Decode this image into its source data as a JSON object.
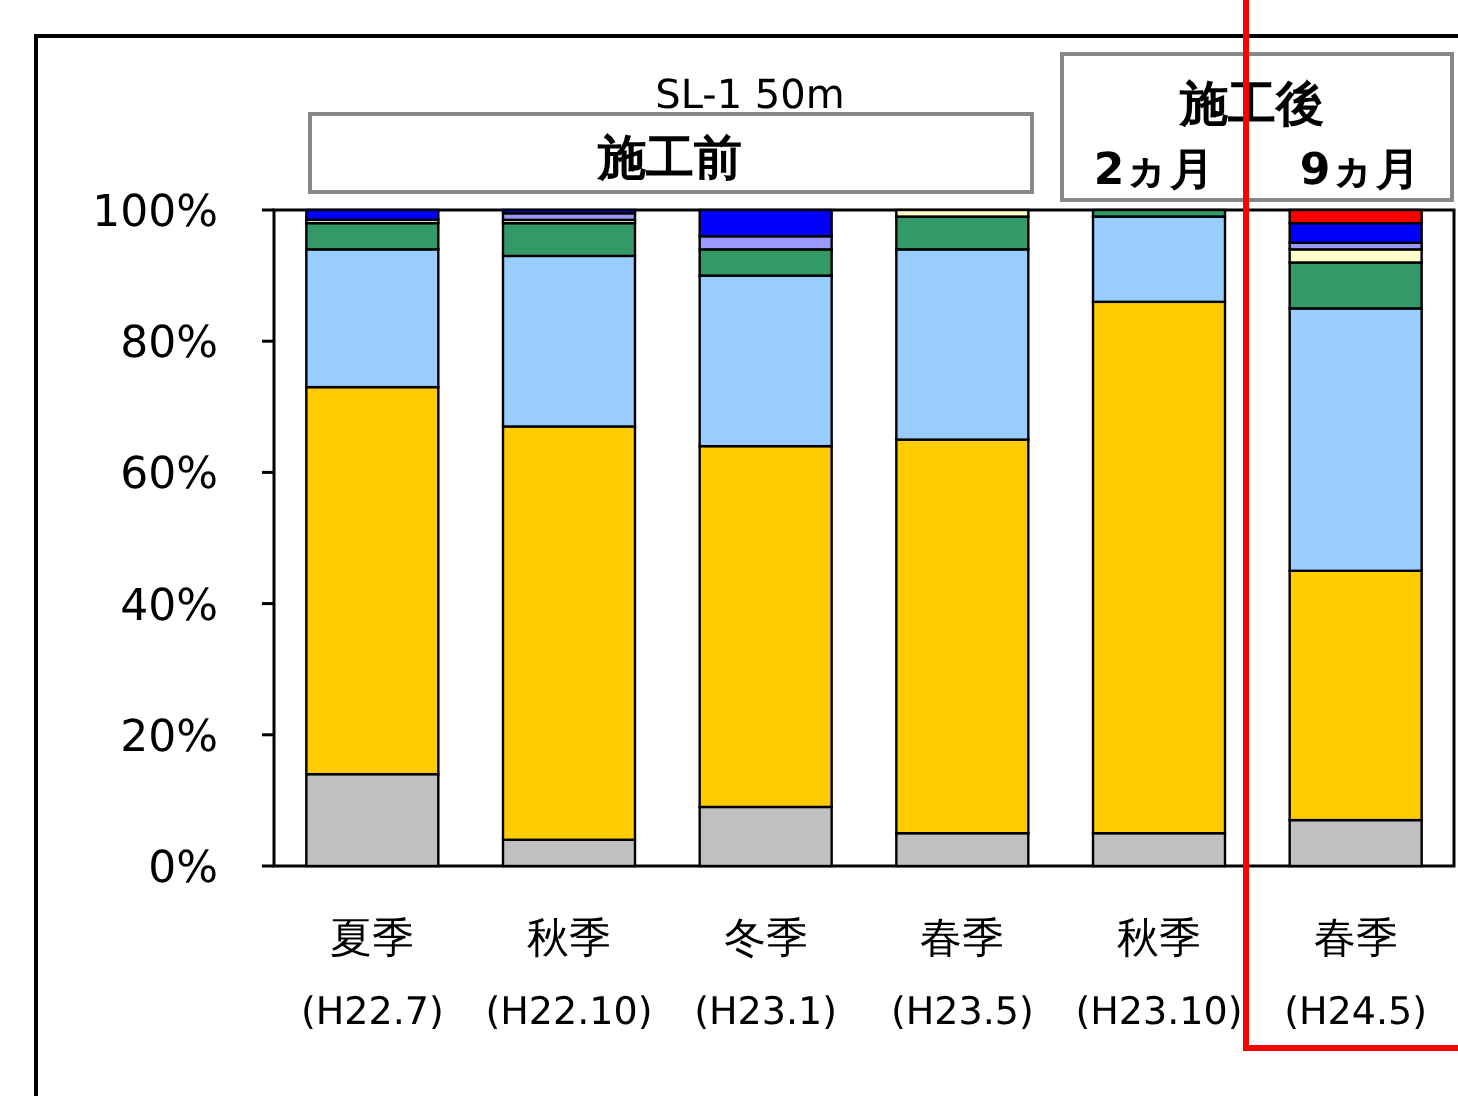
{
  "chart_data": {
    "type": "bar",
    "stacked": true,
    "title": "SL-1  50m",
    "annotations": [
      "施工前",
      "施工後",
      "2ヵ月",
      "9ヵ月"
    ],
    "categories": [
      "夏季\n(H22.7)",
      "秋季\n(H22.10)",
      "冬季\n(H23.1)",
      "春季\n(H23.5)",
      "秋季\n(H23.10)",
      "春季\n(H24.5)"
    ],
    "ylim": [
      0,
      100
    ],
    "yticks": [
      {
        "value": 0,
        "label": "0%"
      },
      {
        "value": 20,
        "label": "20%"
      },
      {
        "value": 40,
        "label": "40%"
      },
      {
        "value": 60,
        "label": "60%"
      },
      {
        "value": 80,
        "label": "80%"
      },
      {
        "value": 100,
        "label": "100%"
      }
    ],
    "grid": false,
    "series": [
      {
        "color": "#c0c0c0",
        "values": [
          14,
          4,
          9,
          5,
          5,
          7
        ]
      },
      {
        "color": "#ffcc00",
        "values": [
          59,
          63,
          55,
          60,
          81,
          38
        ]
      },
      {
        "color": "#99ccff",
        "values": [
          21,
          26,
          26,
          29,
          13,
          40
        ]
      },
      {
        "color": "#339966",
        "values": [
          4,
          5,
          4,
          5,
          1,
          7
        ]
      },
      {
        "color": "#ffffcc",
        "values": [
          0.5,
          0.5,
          0,
          1,
          0,
          2
        ]
      },
      {
        "color": "#9999ff",
        "values": [
          0,
          1,
          2,
          0,
          0,
          1
        ]
      },
      {
        "color": "#0000ff",
        "values": [
          1.5,
          0.5,
          4,
          0,
          0,
          3
        ]
      },
      {
        "color": "#ff0000",
        "values": [
          0,
          0,
          0,
          0,
          0,
          2
        ]
      }
    ]
  }
}
